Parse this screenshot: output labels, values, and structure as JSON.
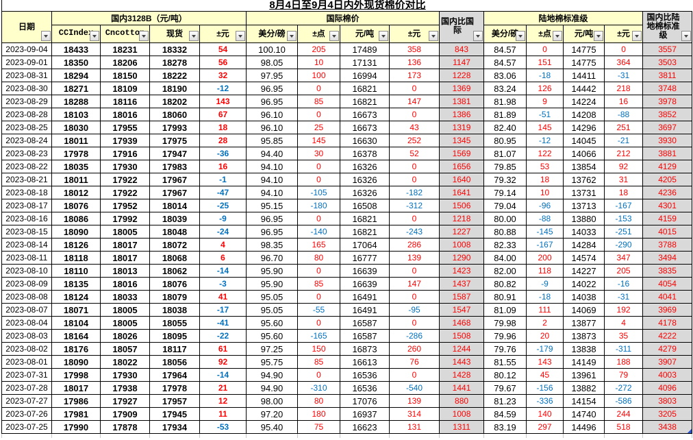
{
  "title": "8月4日至9月4日内外现货棉价对比",
  "header": {
    "date": "日期",
    "groups": {
      "domestic": "国内3128B（元/吨）",
      "international": "国际棉价",
      "domestic_vs_international": "国内比国际",
      "upland": "陆地棉标准级",
      "domestic_vs_upland": "国内比陆地棉标准级"
    },
    "leaf": [
      "CCIndex",
      "Cncotton",
      "现货",
      "±元",
      "美分/磅",
      "±点",
      "元/吨",
      "±元",
      "美分/磅",
      "±点",
      "元/吨",
      "±元"
    ]
  },
  "icons": {
    "filter_dropdown": "▼"
  },
  "colors": {
    "header_fill": "#ffffcc",
    "ratio_fill": "#d9d9d9",
    "positive": "#ff0000",
    "negative": "#0070c0",
    "grid": "#000000"
  },
  "rows": [
    [
      "2023-09-04",
      "18433",
      "18231",
      "18332",
      "54",
      "100.10",
      "205",
      "17489",
      "358",
      "843",
      "84.57",
      "0",
      "14775",
      "0",
      "3557"
    ],
    [
      "2023-09-01",
      "18350",
      "18206",
      "18278",
      "56",
      "98.05",
      "10",
      "17131",
      "136",
      "1147",
      "84.57",
      "151",
      "14775",
      "364",
      "3503"
    ],
    [
      "2023-08-31",
      "18294",
      "18150",
      "18222",
      "32",
      "97.95",
      "100",
      "16994",
      "173",
      "1228",
      "83.06",
      "-18",
      "14411",
      "-31",
      "3811"
    ],
    [
      "2023-08-30",
      "18271",
      "18109",
      "18190",
      "-12",
      "96.95",
      "0",
      "16821",
      "0",
      "1369",
      "83.24",
      "126",
      "14442",
      "218",
      "3748"
    ],
    [
      "2023-08-29",
      "18288",
      "18116",
      "18202",
      "143",
      "96.95",
      "85",
      "16821",
      "147",
      "1381",
      "81.98",
      "9",
      "14224",
      "16",
      "3978"
    ],
    [
      "2023-08-28",
      "18103",
      "18016",
      "18060",
      "67",
      "96.10",
      "0",
      "16673",
      "0",
      "1386",
      "81.89",
      "-51",
      "14208",
      "-88",
      "3852"
    ],
    [
      "2023-08-25",
      "18030",
      "17955",
      "17993",
      "18",
      "96.10",
      "25",
      "16673",
      "43",
      "1319",
      "82.40",
      "145",
      "14296",
      "251",
      "3697"
    ],
    [
      "2023-08-24",
      "18011",
      "17939",
      "17975",
      "28",
      "95.85",
      "145",
      "16630",
      "252",
      "1345",
      "80.95",
      "-12",
      "14045",
      "-21",
      "3930"
    ],
    [
      "2023-08-23",
      "17978",
      "17916",
      "17947",
      "-36",
      "94.40",
      "30",
      "16378",
      "52",
      "1569",
      "81.07",
      "122",
      "14066",
      "212",
      "3881"
    ],
    [
      "2023-08-22",
      "18035",
      "17930",
      "17983",
      "16",
      "94.10",
      "0",
      "16326",
      "0",
      "1656",
      "79.85",
      "53",
      "13854",
      "92",
      "4129"
    ],
    [
      "2023-08-21",
      "18011",
      "17922",
      "17967",
      "-1",
      "94.10",
      "0",
      "16326",
      "0",
      "1640",
      "79.32",
      "18",
      "13762",
      "31",
      "4205"
    ],
    [
      "2023-08-18",
      "18012",
      "17922",
      "17967",
      "-47",
      "94.10",
      "-105",
      "16326",
      "-182",
      "1641",
      "79.14",
      "10",
      "13731",
      "18",
      "4236"
    ],
    [
      "2023-08-17",
      "18076",
      "17952",
      "18014",
      "-25",
      "95.15",
      "-180",
      "16508",
      "-312",
      "1506",
      "79.04",
      "-96",
      "13713",
      "-167",
      "4301"
    ],
    [
      "2023-08-16",
      "18086",
      "17992",
      "18039",
      "-9",
      "96.95",
      "0",
      "16821",
      "0",
      "1218",
      "80.00",
      "-88",
      "13880",
      "-153",
      "4159"
    ],
    [
      "2023-08-15",
      "18090",
      "18005",
      "18048",
      "-24",
      "96.95",
      "-140",
      "16821",
      "-243",
      "1227",
      "80.88",
      "-145",
      "14033",
      "-251",
      "4015"
    ],
    [
      "2023-08-14",
      "18126",
      "18017",
      "18072",
      "4",
      "98.35",
      "165",
      "17064",
      "286",
      "1008",
      "82.33",
      "-167",
      "14284",
      "-290",
      "3788"
    ],
    [
      "2023-08-11",
      "18118",
      "18017",
      "18068",
      "6",
      "96.70",
      "80",
      "16777",
      "139",
      "1290",
      "84.00",
      "200",
      "14574",
      "347",
      "3494"
    ],
    [
      "2023-08-10",
      "18110",
      "18013",
      "18062",
      "-14",
      "95.90",
      "0",
      "16639",
      "0",
      "1423",
      "82.00",
      "118",
      "14227",
      "205",
      "3835"
    ],
    [
      "2023-08-09",
      "18135",
      "18016",
      "18076",
      "-3",
      "95.90",
      "85",
      "16639",
      "147",
      "1437",
      "80.82",
      "-9",
      "14022",
      "-16",
      "4054"
    ],
    [
      "2023-08-08",
      "18124",
      "18033",
      "18079",
      "41",
      "95.05",
      "0",
      "16491",
      "0",
      "1587",
      "80.91",
      "-18",
      "14038",
      "-31",
      "4041"
    ],
    [
      "2023-08-07",
      "18071",
      "18005",
      "18038",
      "-17",
      "95.05",
      "-55",
      "16491",
      "-95",
      "1547",
      "81.09",
      "111",
      "14069",
      "192",
      "3969"
    ],
    [
      "2023-08-04",
      "18104",
      "18005",
      "18055",
      "-41",
      "95.60",
      "0",
      "16587",
      "0",
      "1468",
      "79.98",
      "2",
      "13877",
      "4",
      "4178"
    ],
    [
      "2023-08-03",
      "18164",
      "18026",
      "18095",
      "-22",
      "95.60",
      "-165",
      "16587",
      "-286",
      "1508",
      "79.96",
      "20",
      "13873",
      "35",
      "4222"
    ],
    [
      "2023-08-02",
      "18176",
      "18057",
      "18117",
      "61",
      "97.25",
      "150",
      "16873",
      "260",
      "1244",
      "79.76",
      "-179",
      "13838",
      "-311",
      "4279"
    ],
    [
      "2023-08-01",
      "18090",
      "18022",
      "18056",
      "92",
      "95.75",
      "85",
      "16613",
      "76",
      "1443",
      "81.55",
      "143",
      "14149",
      "188",
      "3907"
    ],
    [
      "2023-07-31",
      "17998",
      "17930",
      "17964",
      "-14",
      "94.90",
      "0",
      "16536",
      "0",
      "1428",
      "80.12",
      "45",
      "13961",
      "79",
      "4003"
    ],
    [
      "2023-07-28",
      "18017",
      "17938",
      "17978",
      "21",
      "94.90",
      "-310",
      "16536",
      "-540",
      "1441",
      "79.67",
      "-156",
      "13882",
      "-272",
      "4096"
    ],
    [
      "2023-07-27",
      "17986",
      "17927",
      "17957",
      "12",
      "98.00",
      "80",
      "17076",
      "139",
      "880",
      "81.23",
      "-336",
      "14154",
      "-586",
      "3803"
    ],
    [
      "2023-07-26",
      "17981",
      "17909",
      "17945",
      "11",
      "97.20",
      "180",
      "16937",
      "314",
      "1008",
      "84.59",
      "140",
      "14740",
      "244",
      "3205"
    ],
    [
      "2023-07-25",
      "17990",
      "17878",
      "17934",
      "-53",
      "95.40",
      "75",
      "16623",
      "131",
      "1311",
      "83.19",
      "297",
      "14496",
      "518",
      "3438"
    ]
  ]
}
